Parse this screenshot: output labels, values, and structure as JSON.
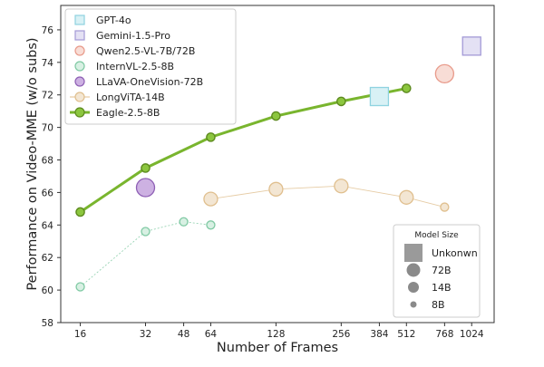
{
  "chart_data": {
    "type": "scatter",
    "xlabel": "Number of Frames",
    "ylabel": "Performance on Video-MME (w/o subs)",
    "x_scale": "log2",
    "xlim": [
      13,
      1300
    ],
    "ylim": [
      58,
      77.5
    ],
    "xticks": [
      16,
      32,
      48,
      64,
      128,
      256,
      384,
      512,
      768,
      1024
    ],
    "xtick_labels": [
      "16",
      "32",
      "48",
      "64",
      "128",
      "256",
      "384",
      "512",
      "768",
      "1024"
    ],
    "yticks": [
      58,
      60,
      62,
      64,
      66,
      68,
      70,
      72,
      74,
      76
    ],
    "ytick_labels": [
      "58",
      "60",
      "62",
      "64",
      "66",
      "68",
      "70",
      "72",
      "74",
      "76"
    ],
    "grid": false,
    "legend_position": "top-left",
    "series": [
      {
        "name": "GPT-4o",
        "marker": "square",
        "color": "#8fd3e0",
        "fill": "#d8f1f5",
        "model_size": "Unknown",
        "connected": false,
        "points": [
          {
            "x": 384,
            "y": 71.9
          }
        ]
      },
      {
        "name": "Gemini-1.5-Pro",
        "marker": "square",
        "color": "#a39ad6",
        "fill": "#e4e1f4",
        "model_size": "Unknown",
        "connected": false,
        "points": [
          {
            "x": 1024,
            "y": 75.0
          }
        ]
      },
      {
        "name": "Qwen2.5-VL-7B/72B",
        "marker": "circle",
        "color": "#e89a8a",
        "fill": "#f8ddd6",
        "connected": false,
        "points": [
          {
            "x": 768,
            "y": 73.3,
            "model_size": "72B"
          }
        ]
      },
      {
        "name": "InternVL-2.5-8B",
        "marker": "circle",
        "color": "#7fc9a3",
        "fill": "#d8f0e3",
        "connected": true,
        "line_style": "dashed",
        "points": [
          {
            "x": 16,
            "y": 60.2,
            "model_size": "8B"
          },
          {
            "x": 32,
            "y": 63.6,
            "model_size": "8B"
          },
          {
            "x": 48,
            "y": 64.2,
            "model_size": "8B"
          },
          {
            "x": 64,
            "y": 64.0,
            "model_size": "8B"
          }
        ]
      },
      {
        "name": "LLaVA-OneVision-72B",
        "marker": "circle",
        "color": "#8e5fb5",
        "fill": "#cdb1e2",
        "connected": false,
        "points": [
          {
            "x": 32,
            "y": 66.3,
            "model_size": "72B"
          }
        ]
      },
      {
        "name": "LongViTA-14B",
        "marker": "circle",
        "color": "#e0bf8e",
        "fill": "#f3e6d3",
        "connected": true,
        "line_style": "solid",
        "points": [
          {
            "x": 64,
            "y": 65.6,
            "model_size": "14B"
          },
          {
            "x": 128,
            "y": 66.2,
            "model_size": "14B"
          },
          {
            "x": 256,
            "y": 66.4,
            "model_size": "14B"
          },
          {
            "x": 512,
            "y": 65.7,
            "model_size": "14B"
          },
          {
            "x": 768,
            "y": 65.1,
            "model_size": "8B"
          }
        ]
      },
      {
        "name": "Eagle-2.5-8B",
        "marker": "circle",
        "color": "#5d8a1e",
        "fill": "#8cc63f",
        "connected": true,
        "line_style": "solid",
        "emphasis": true,
        "points": [
          {
            "x": 16,
            "y": 64.8
          },
          {
            "x": 32,
            "y": 67.5
          },
          {
            "x": 64,
            "y": 69.4
          },
          {
            "x": 128,
            "y": 70.7
          },
          {
            "x": 256,
            "y": 71.6
          },
          {
            "x": 512,
            "y": 72.4
          }
        ]
      }
    ],
    "size_legend": {
      "title": "Model Size",
      "position": "bottom-right",
      "entries": [
        {
          "label": "Unkonwn",
          "marker": "square"
        },
        {
          "label": "72B",
          "marker": "circle"
        },
        {
          "label": "14B",
          "marker": "circle"
        },
        {
          "label": "8B",
          "marker": "circle"
        }
      ]
    }
  }
}
